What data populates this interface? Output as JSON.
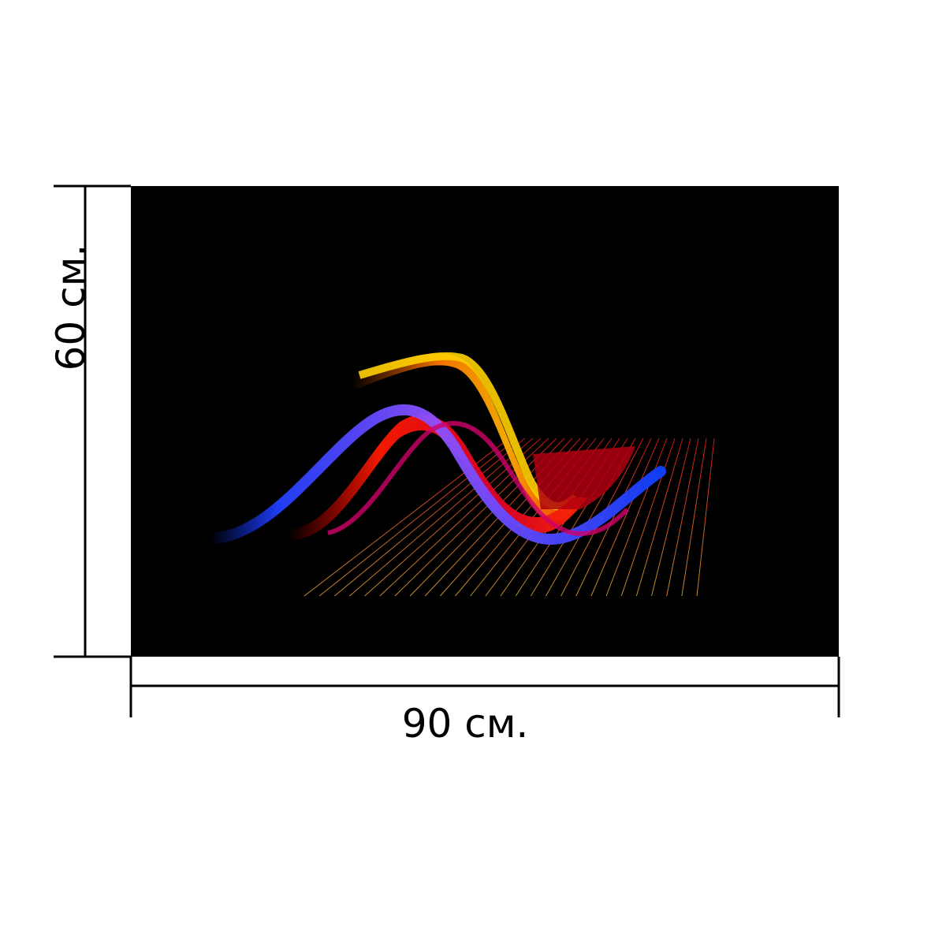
{
  "product": {
    "artwork": "3d-wave-graph-image",
    "background_color": "#000000",
    "wave_colors": [
      "#ff8c00",
      "#ffd000",
      "#ff1a00",
      "#1a3cff",
      "#d0008a"
    ]
  },
  "dimensions": {
    "width_label": "90 см.",
    "height_label": "60 см."
  }
}
